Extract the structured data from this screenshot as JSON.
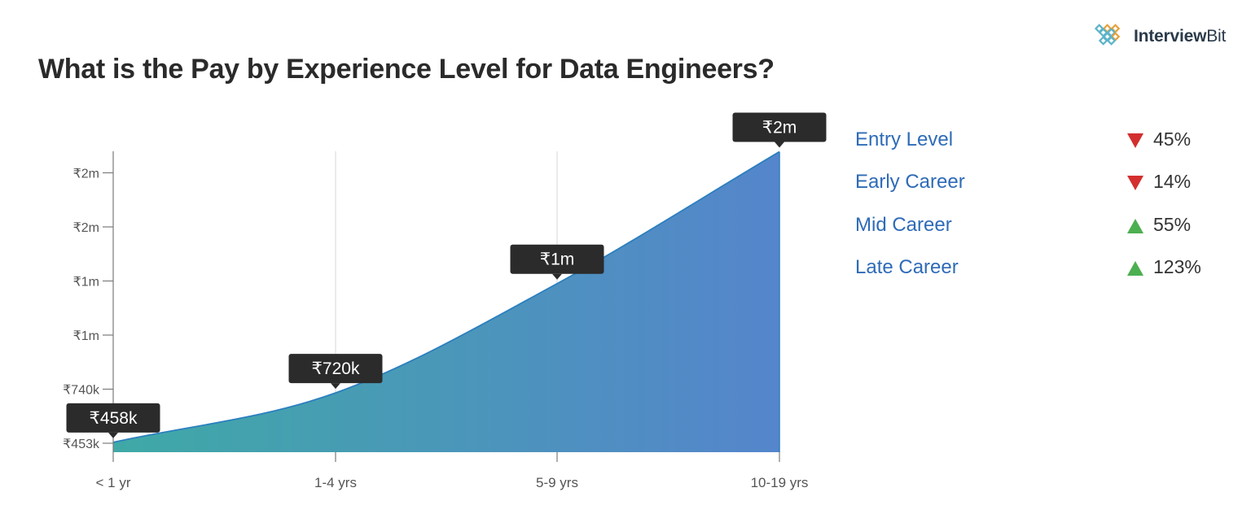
{
  "brand": {
    "name_bold": "Interview",
    "name_regular": "Bit",
    "icon": "diamond-grid-logo-icon"
  },
  "title": "What is the Pay by Experience Level for Data Engineers?",
  "chart_data": {
    "type": "area",
    "categories": [
      "< 1 yr",
      "1-4 yrs",
      "5-9 yrs",
      "10-19 yrs"
    ],
    "values": [
      458000,
      720000,
      1300000,
      2000000
    ],
    "data_labels": [
      "₹458k",
      "₹720k",
      "₹1m",
      "₹2m"
    ],
    "y_ticks": [
      {
        "value": 453000,
        "label": "₹453k"
      },
      {
        "value": 740000,
        "label": "₹740k"
      },
      {
        "value": 1027000,
        "label": "₹1m"
      },
      {
        "value": 1314000,
        "label": "₹1m"
      },
      {
        "value": 1601000,
        "label": "₹2m"
      },
      {
        "value": 1888000,
        "label": "₹2m"
      }
    ],
    "ylim": [
      453000,
      2050000
    ],
    "gradient": [
      "#3fa9a6",
      "#5585cc"
    ],
    "line_color": "#2b7fbf",
    "grid": "vertical"
  },
  "legend": [
    {
      "label": "Entry Level",
      "trend": "down",
      "value": "45%"
    },
    {
      "label": "Early Career",
      "trend": "down",
      "value": "14%"
    },
    {
      "label": "Mid Career",
      "trend": "up",
      "value": "55%"
    },
    {
      "label": "Late Career",
      "trend": "up",
      "value": "123%"
    }
  ],
  "colors": {
    "down": "#d32f2f",
    "up": "#4caf50",
    "legend_text": "#2e6bb8",
    "tooltip_bg": "#2b2b2b"
  }
}
